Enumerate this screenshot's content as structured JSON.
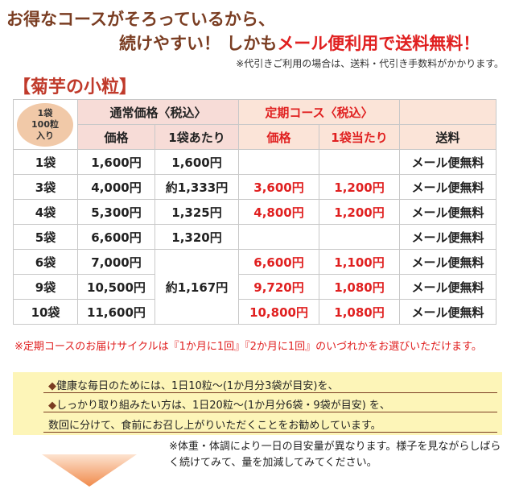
{
  "headline": {
    "line1": "お得なコースがそろっているから、",
    "line2_prefix": "続けやすい！ しかも",
    "line2_red": "メール便利用で送料無料！"
  },
  "cod_note": "※代引きご利用の場合は、送料・代引き手数料がかかります。",
  "section_title": "【菊芋の小粒】",
  "table": {
    "badge": [
      "1袋",
      "100粒",
      "入り"
    ],
    "group_regular": "通常価格〈税込〉",
    "group_teiki": "定期コース〈税込〉",
    "col_price": "価格",
    "col_per_bag": "1袋あたり",
    "col_teiki_price": "価格",
    "col_teiki_per_bag": "1袋当たり",
    "col_shipping": "送料",
    "rows": [
      {
        "qty": "1袋",
        "price": "1,600円",
        "per_bag": "1,600円",
        "teiki_price": "",
        "teiki_per_bag": "",
        "shipping": "メール便無料"
      },
      {
        "qty": "3袋",
        "price": "4,000円",
        "per_bag": "約1,333円",
        "teiki_price": "3,600円",
        "teiki_per_bag": "1,200円",
        "shipping": "メール便無料"
      },
      {
        "qty": "4袋",
        "price": "5,300円",
        "per_bag": "1,325円",
        "teiki_price": "4,800円",
        "teiki_per_bag": "1,200円",
        "shipping": "メール便無料"
      },
      {
        "qty": "5袋",
        "price": "6,600円",
        "per_bag": "1,320円",
        "teiki_price": "",
        "teiki_per_bag": "",
        "shipping": "メール便無料"
      },
      {
        "qty": "6袋",
        "price": "7,000円",
        "per_bag": "約1,167円",
        "teiki_price": "6,600円",
        "teiki_per_bag": "1,100円",
        "shipping": "メール便無料"
      },
      {
        "qty": "9袋",
        "price": "10,500円",
        "per_bag": "",
        "teiki_price": "9,720円",
        "teiki_per_bag": "1,080円",
        "shipping": "メール便無料"
      },
      {
        "qty": "10袋",
        "price": "11,600円",
        "per_bag": "",
        "teiki_price": "10,800円",
        "teiki_per_bag": "1,080円",
        "shipping": "メール便無料"
      }
    ]
  },
  "cycle_note": "※定期コースのお届けサイクルは『1か月に1回』『2か月に1回』のいづれかをお選びいただけます。",
  "advice": {
    "line1_mark": "◆",
    "line1": "健康な毎日のためには、1日10粒～(1か月分3袋が目安)を、",
    "line2_mark": "◆",
    "line2": "しっかり取り組みたい方は、1日20粒～(1か月分6袋・9袋が目安) を、",
    "line3": "数回に分けて、食前にお召し上がりいただくことをお勧めしています。"
  },
  "body_note": "※体重・体調により一日の目安量が異なります。様子を見ながらしばらく続けてみて、量を加減してみてください。",
  "colors": {
    "headline_brown": "#7a3d22",
    "accent_red": "#e02020",
    "header_pink": "#f7dcd7",
    "badge_orange": "#f1c9a8",
    "advice_yellow": "#fdf5b8",
    "arrow_orange": "#f08a4b"
  }
}
